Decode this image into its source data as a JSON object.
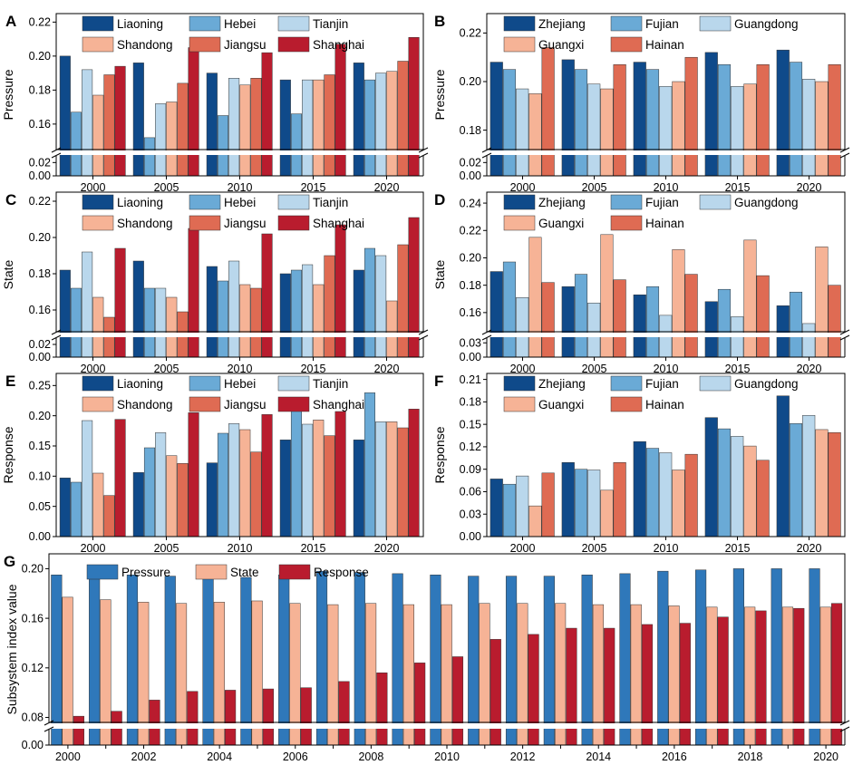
{
  "colors": {
    "Liaoning": "#0f4a8a",
    "Hebei": "#6aaad6",
    "Tianjin": "#b9d7ec",
    "Shandong": "#f6b396",
    "Jiangsu": "#df6b53",
    "Shanghai": "#b91c2e",
    "Zhejiang": "#0f4a8a",
    "Fujian": "#6aaad6",
    "Guangdong": "#b9d7ec",
    "Guangxi": "#f6b396",
    "Hainan": "#df6b53",
    "Pressure": "#2f78ba",
    "State": "#f6b396",
    "Response": "#b91c2e"
  },
  "chart_data": [
    {
      "panel": "A",
      "type": "bar",
      "ylabel": "Pressure",
      "categories": [
        "2000",
        "2005",
        "2010",
        "2015",
        "2020"
      ],
      "ylim_upper": [
        0.145,
        0.225
      ],
      "yticks_upper": [
        "0.16",
        "0.18",
        "0.20",
        "0.22"
      ],
      "ylim_lower": [
        0,
        0.03
      ],
      "yticks_lower": [
        "0.00",
        "0.02"
      ],
      "series": [
        {
          "name": "Liaoning",
          "values": [
            0.2,
            0.196,
            0.19,
            0.186,
            0.196
          ]
        },
        {
          "name": "Hebei",
          "values": [
            0.167,
            0.152,
            0.165,
            0.166,
            0.186
          ]
        },
        {
          "name": "Tianjin",
          "values": [
            0.192,
            0.172,
            0.187,
            0.186,
            0.19
          ]
        },
        {
          "name": "Shandong",
          "values": [
            0.177,
            0.173,
            0.183,
            0.186,
            0.191
          ]
        },
        {
          "name": "Jiangsu",
          "values": [
            0.189,
            0.184,
            0.187,
            0.189,
            0.197
          ]
        },
        {
          "name": "Shanghai",
          "values": [
            0.194,
            0.205,
            0.202,
            0.207,
            0.211
          ]
        }
      ]
    },
    {
      "panel": "B",
      "type": "bar",
      "ylabel": "Pressure",
      "categories": [
        "2000",
        "2005",
        "2010",
        "2015",
        "2020"
      ],
      "ylim_upper": [
        0.172,
        0.228
      ],
      "yticks_upper": [
        "0.18",
        "0.20",
        "0.22"
      ],
      "ylim_lower": [
        0,
        0.03
      ],
      "yticks_lower": [
        "0.00",
        "0.02"
      ],
      "series": [
        {
          "name": "Zhejiang",
          "values": [
            0.208,
            0.209,
            0.208,
            0.212,
            0.213
          ]
        },
        {
          "name": "Fujian",
          "values": [
            0.205,
            0.205,
            0.205,
            0.207,
            0.208
          ]
        },
        {
          "name": "Guangdong",
          "values": [
            0.197,
            0.199,
            0.198,
            0.198,
            0.201
          ]
        },
        {
          "name": "Guangxi",
          "values": [
            0.195,
            0.197,
            0.2,
            0.199,
            0.2
          ]
        },
        {
          "name": "Hainan",
          "values": [
            0.214,
            0.207,
            0.21,
            0.207,
            0.207
          ]
        }
      ]
    },
    {
      "panel": "C",
      "type": "bar",
      "ylabel": "State",
      "categories": [
        "2000",
        "2005",
        "2010",
        "2015",
        "2020"
      ],
      "ylim_upper": [
        0.148,
        0.225
      ],
      "yticks_upper": [
        "0.16",
        "0.18",
        "0.20",
        "0.22"
      ],
      "ylim_lower": [
        0,
        0.03
      ],
      "yticks_lower": [
        "0.00",
        "0.02"
      ],
      "series": [
        {
          "name": "Liaoning",
          "values": [
            0.182,
            0.187,
            0.184,
            0.18,
            0.182
          ]
        },
        {
          "name": "Hebei",
          "values": [
            0.172,
            0.172,
            0.176,
            0.182,
            0.194
          ]
        },
        {
          "name": "Tianjin",
          "values": [
            0.192,
            0.172,
            0.187,
            0.185,
            0.19
          ]
        },
        {
          "name": "Shandong",
          "values": [
            0.167,
            0.167,
            0.174,
            0.174,
            0.165
          ]
        },
        {
          "name": "Jiangsu",
          "values": [
            0.156,
            0.159,
            0.172,
            0.19,
            0.196
          ]
        },
        {
          "name": "Shanghai",
          "values": [
            0.194,
            0.205,
            0.202,
            0.207,
            0.211
          ]
        }
      ]
    },
    {
      "panel": "D",
      "type": "bar",
      "ylabel": "State",
      "categories": [
        "2000",
        "2005",
        "2010",
        "2015",
        "2020"
      ],
      "ylim_upper": [
        0.146,
        0.248
      ],
      "yticks_upper": [
        "0.16",
        "0.18",
        "0.20",
        "0.22",
        "0.24"
      ],
      "ylim_lower": [
        0,
        0.04
      ],
      "yticks_lower": [
        "0.00",
        "0.03"
      ],
      "series": [
        {
          "name": "Zhejiang",
          "values": [
            0.19,
            0.179,
            0.173,
            0.168,
            0.165
          ]
        },
        {
          "name": "Fujian",
          "values": [
            0.197,
            0.188,
            0.179,
            0.177,
            0.175
          ]
        },
        {
          "name": "Guangdong",
          "values": [
            0.171,
            0.167,
            0.158,
            0.157,
            0.152
          ]
        },
        {
          "name": "Guangxi",
          "values": [
            0.215,
            0.217,
            0.206,
            0.213,
            0.208
          ]
        },
        {
          "name": "Hainan",
          "values": [
            0.182,
            0.184,
            0.188,
            0.187,
            0.18
          ]
        }
      ]
    },
    {
      "panel": "E",
      "type": "bar",
      "ylabel": "Response",
      "categories": [
        "2000",
        "2005",
        "2010",
        "2015",
        "2020"
      ],
      "ylim": [
        0,
        0.27
      ],
      "yticks": [
        "0.00",
        "0.05",
        "0.10",
        "0.15",
        "0.20",
        "0.25"
      ],
      "series": [
        {
          "name": "Liaoning",
          "values": [
            0.097,
            0.106,
            0.122,
            0.16,
            0.16
          ]
        },
        {
          "name": "Hebei",
          "values": [
            0.09,
            0.147,
            0.171,
            0.213,
            0.238
          ]
        },
        {
          "name": "Tianjin",
          "values": [
            0.192,
            0.172,
            0.187,
            0.186,
            0.19
          ]
        },
        {
          "name": "Shandong",
          "values": [
            0.105,
            0.134,
            0.177,
            0.193,
            0.19
          ]
        },
        {
          "name": "Jiangsu",
          "values": [
            0.068,
            0.121,
            0.14,
            0.167,
            0.18
          ]
        },
        {
          "name": "Shanghai",
          "values": [
            0.194,
            0.205,
            0.202,
            0.207,
            0.211
          ]
        }
      ]
    },
    {
      "panel": "F",
      "type": "bar",
      "ylabel": "Response",
      "categories": [
        "2000",
        "2005",
        "2010",
        "2015",
        "2020"
      ],
      "ylim": [
        0,
        0.218
      ],
      "yticks": [
        "0.00",
        "0.03",
        "0.06",
        "0.09",
        "0.12",
        "0.15",
        "0.18",
        "0.21"
      ],
      "series": [
        {
          "name": "Zhejiang",
          "values": [
            0.077,
            0.099,
            0.127,
            0.159,
            0.188
          ]
        },
        {
          "name": "Fujian",
          "values": [
            0.07,
            0.09,
            0.118,
            0.144,
            0.151
          ]
        },
        {
          "name": "Guangdong",
          "values": [
            0.081,
            0.089,
            0.112,
            0.134,
            0.162
          ]
        },
        {
          "name": "Guangxi",
          "values": [
            0.041,
            0.062,
            0.089,
            0.121,
            0.143
          ]
        },
        {
          "name": "Hainan",
          "values": [
            0.085,
            0.099,
            0.11,
            0.102,
            0.139
          ]
        }
      ]
    },
    {
      "panel": "G",
      "type": "bar",
      "ylabel": "Subsystem index value",
      "categories": [
        "2000",
        "2001",
        "2002",
        "2003",
        "2004",
        "2005",
        "2006",
        "2007",
        "2008",
        "2009",
        "2010",
        "2011",
        "2012",
        "2013",
        "2014",
        "2015",
        "2016",
        "2017",
        "2018",
        "2019",
        "2020"
      ],
      "tick_labels": [
        "2000",
        "2002",
        "2004",
        "2006",
        "2008",
        "2010",
        "2012",
        "2014",
        "2016",
        "2018",
        "2020"
      ],
      "ylim_upper": [
        0.076,
        0.212
      ],
      "yticks_upper": [
        "0.08",
        "0.12",
        "0.16",
        "0.20"
      ],
      "ylim_lower": [
        0,
        0.01
      ],
      "yticks_lower": [
        "0.00"
      ],
      "series": [
        {
          "name": "Pressure",
          "values": [
            0.195,
            0.195,
            0.195,
            0.194,
            0.193,
            0.193,
            0.195,
            0.198,
            0.197,
            0.196,
            0.195,
            0.194,
            0.194,
            0.194,
            0.195,
            0.196,
            0.198,
            0.199,
            0.2,
            0.2,
            0.2
          ]
        },
        {
          "name": "State",
          "values": [
            0.177,
            0.175,
            0.173,
            0.172,
            0.173,
            0.174,
            0.172,
            0.171,
            0.172,
            0.171,
            0.171,
            0.172,
            0.172,
            0.172,
            0.171,
            0.171,
            0.17,
            0.169,
            0.169,
            0.169,
            0.169
          ]
        },
        {
          "name": "Response",
          "values": [
            0.081,
            0.085,
            0.094,
            0.101,
            0.102,
            0.103,
            0.104,
            0.109,
            0.116,
            0.124,
            0.129,
            0.143,
            0.147,
            0.152,
            0.152,
            0.155,
            0.156,
            0.161,
            0.166,
            0.168,
            0.172
          ]
        }
      ]
    }
  ]
}
